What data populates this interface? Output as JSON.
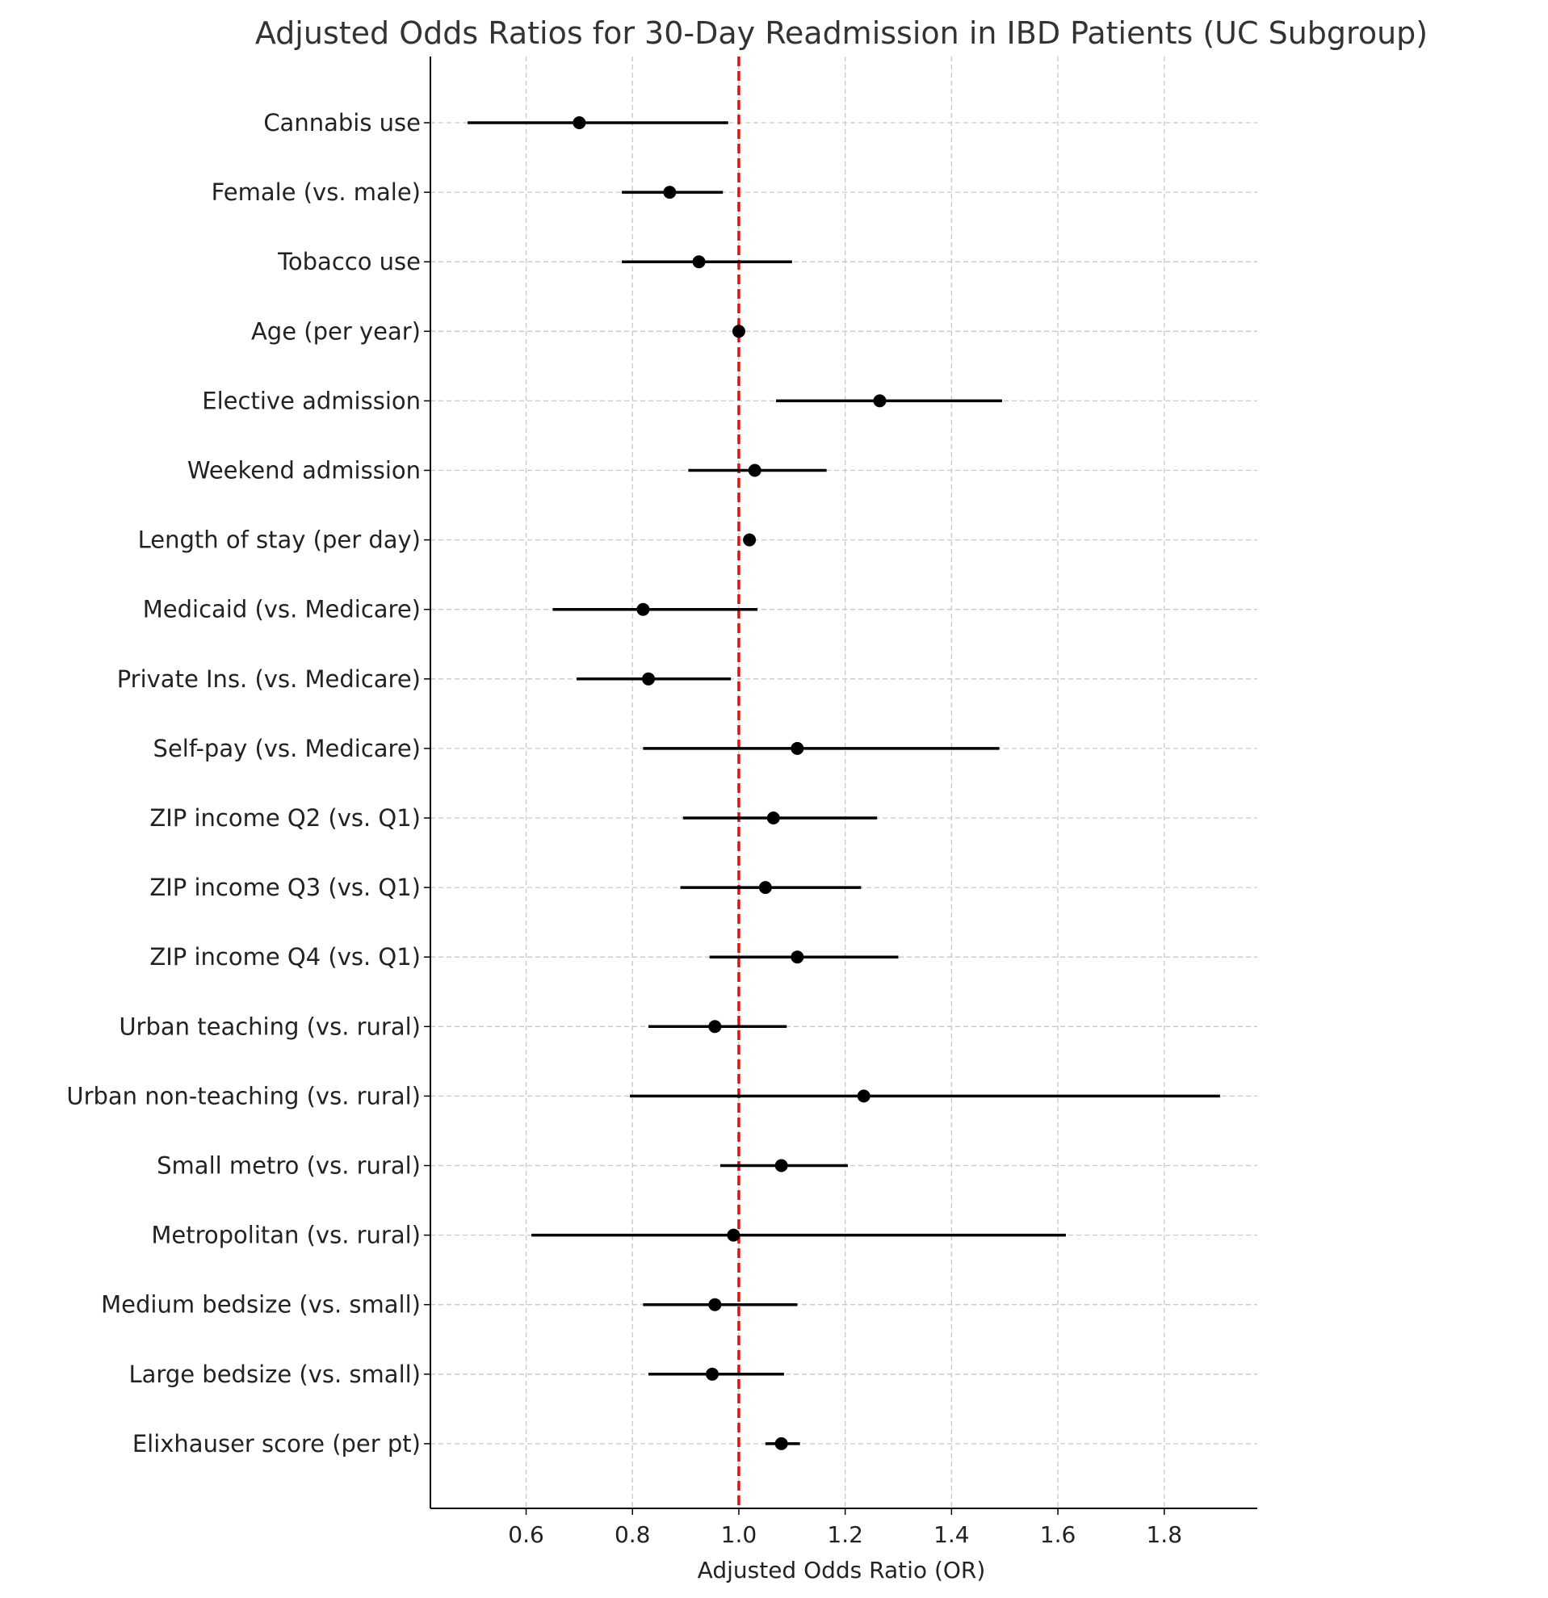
{
  "chart_data": {
    "type": "scatter",
    "subtype": "forest-plot",
    "title": "Adjusted Odds Ratios for 30-Day Readmission in IBD Patients (UC Subgroup)",
    "xlabel": "Adjusted Odds Ratio (OR)",
    "ylabel": "",
    "xlim": [
      0.42,
      1.975
    ],
    "xticks": [
      0.6,
      0.8,
      1.0,
      1.2,
      1.4,
      1.6,
      1.8
    ],
    "xtick_labels": [
      "0.6",
      "0.8",
      "1.0",
      "1.2",
      "1.4",
      "1.6",
      "1.8"
    ],
    "reference_line": {
      "x": 1.0,
      "color": "#e01010",
      "style": "dashed"
    },
    "grid": true,
    "point_color": "#000000",
    "categories": [
      "Cannabis use",
      "Female (vs. male)",
      "Tobacco use",
      "Age (per year)",
      "Elective admission",
      "Weekend admission",
      "Length of stay (per day)",
      "Medicaid (vs. Medicare)",
      "Private Ins. (vs. Medicare)",
      "Self-pay (vs. Medicare)",
      "ZIP income Q2 (vs. Q1)",
      "ZIP income Q3 (vs. Q1)",
      "ZIP income Q4 (vs. Q1)",
      "Urban teaching (vs. rural)",
      "Urban non-teaching (vs. rural)",
      "Small metro (vs. rural)",
      "Metropolitan (vs. rural)",
      "Medium bedsize (vs. small)",
      "Large bedsize (vs. small)",
      "Elixhauser score (per pt)"
    ],
    "or": [
      0.7,
      0.87,
      0.925,
      1.0,
      1.265,
      1.03,
      1.02,
      0.82,
      0.83,
      1.11,
      1.065,
      1.05,
      1.11,
      0.955,
      1.235,
      1.08,
      0.99,
      0.955,
      0.95,
      1.08
    ],
    "ci_lower": [
      0.49,
      0.78,
      0.78,
      0.998,
      1.07,
      0.905,
      1.015,
      0.65,
      0.695,
      0.82,
      0.895,
      0.89,
      0.945,
      0.83,
      0.795,
      0.965,
      0.61,
      0.82,
      0.83,
      1.05
    ],
    "ci_upper": [
      0.98,
      0.97,
      1.1,
      1.002,
      1.495,
      1.165,
      1.025,
      1.035,
      0.985,
      1.49,
      1.26,
      1.23,
      1.3,
      1.09,
      1.905,
      1.205,
      1.615,
      1.11,
      1.085,
      1.115
    ]
  }
}
